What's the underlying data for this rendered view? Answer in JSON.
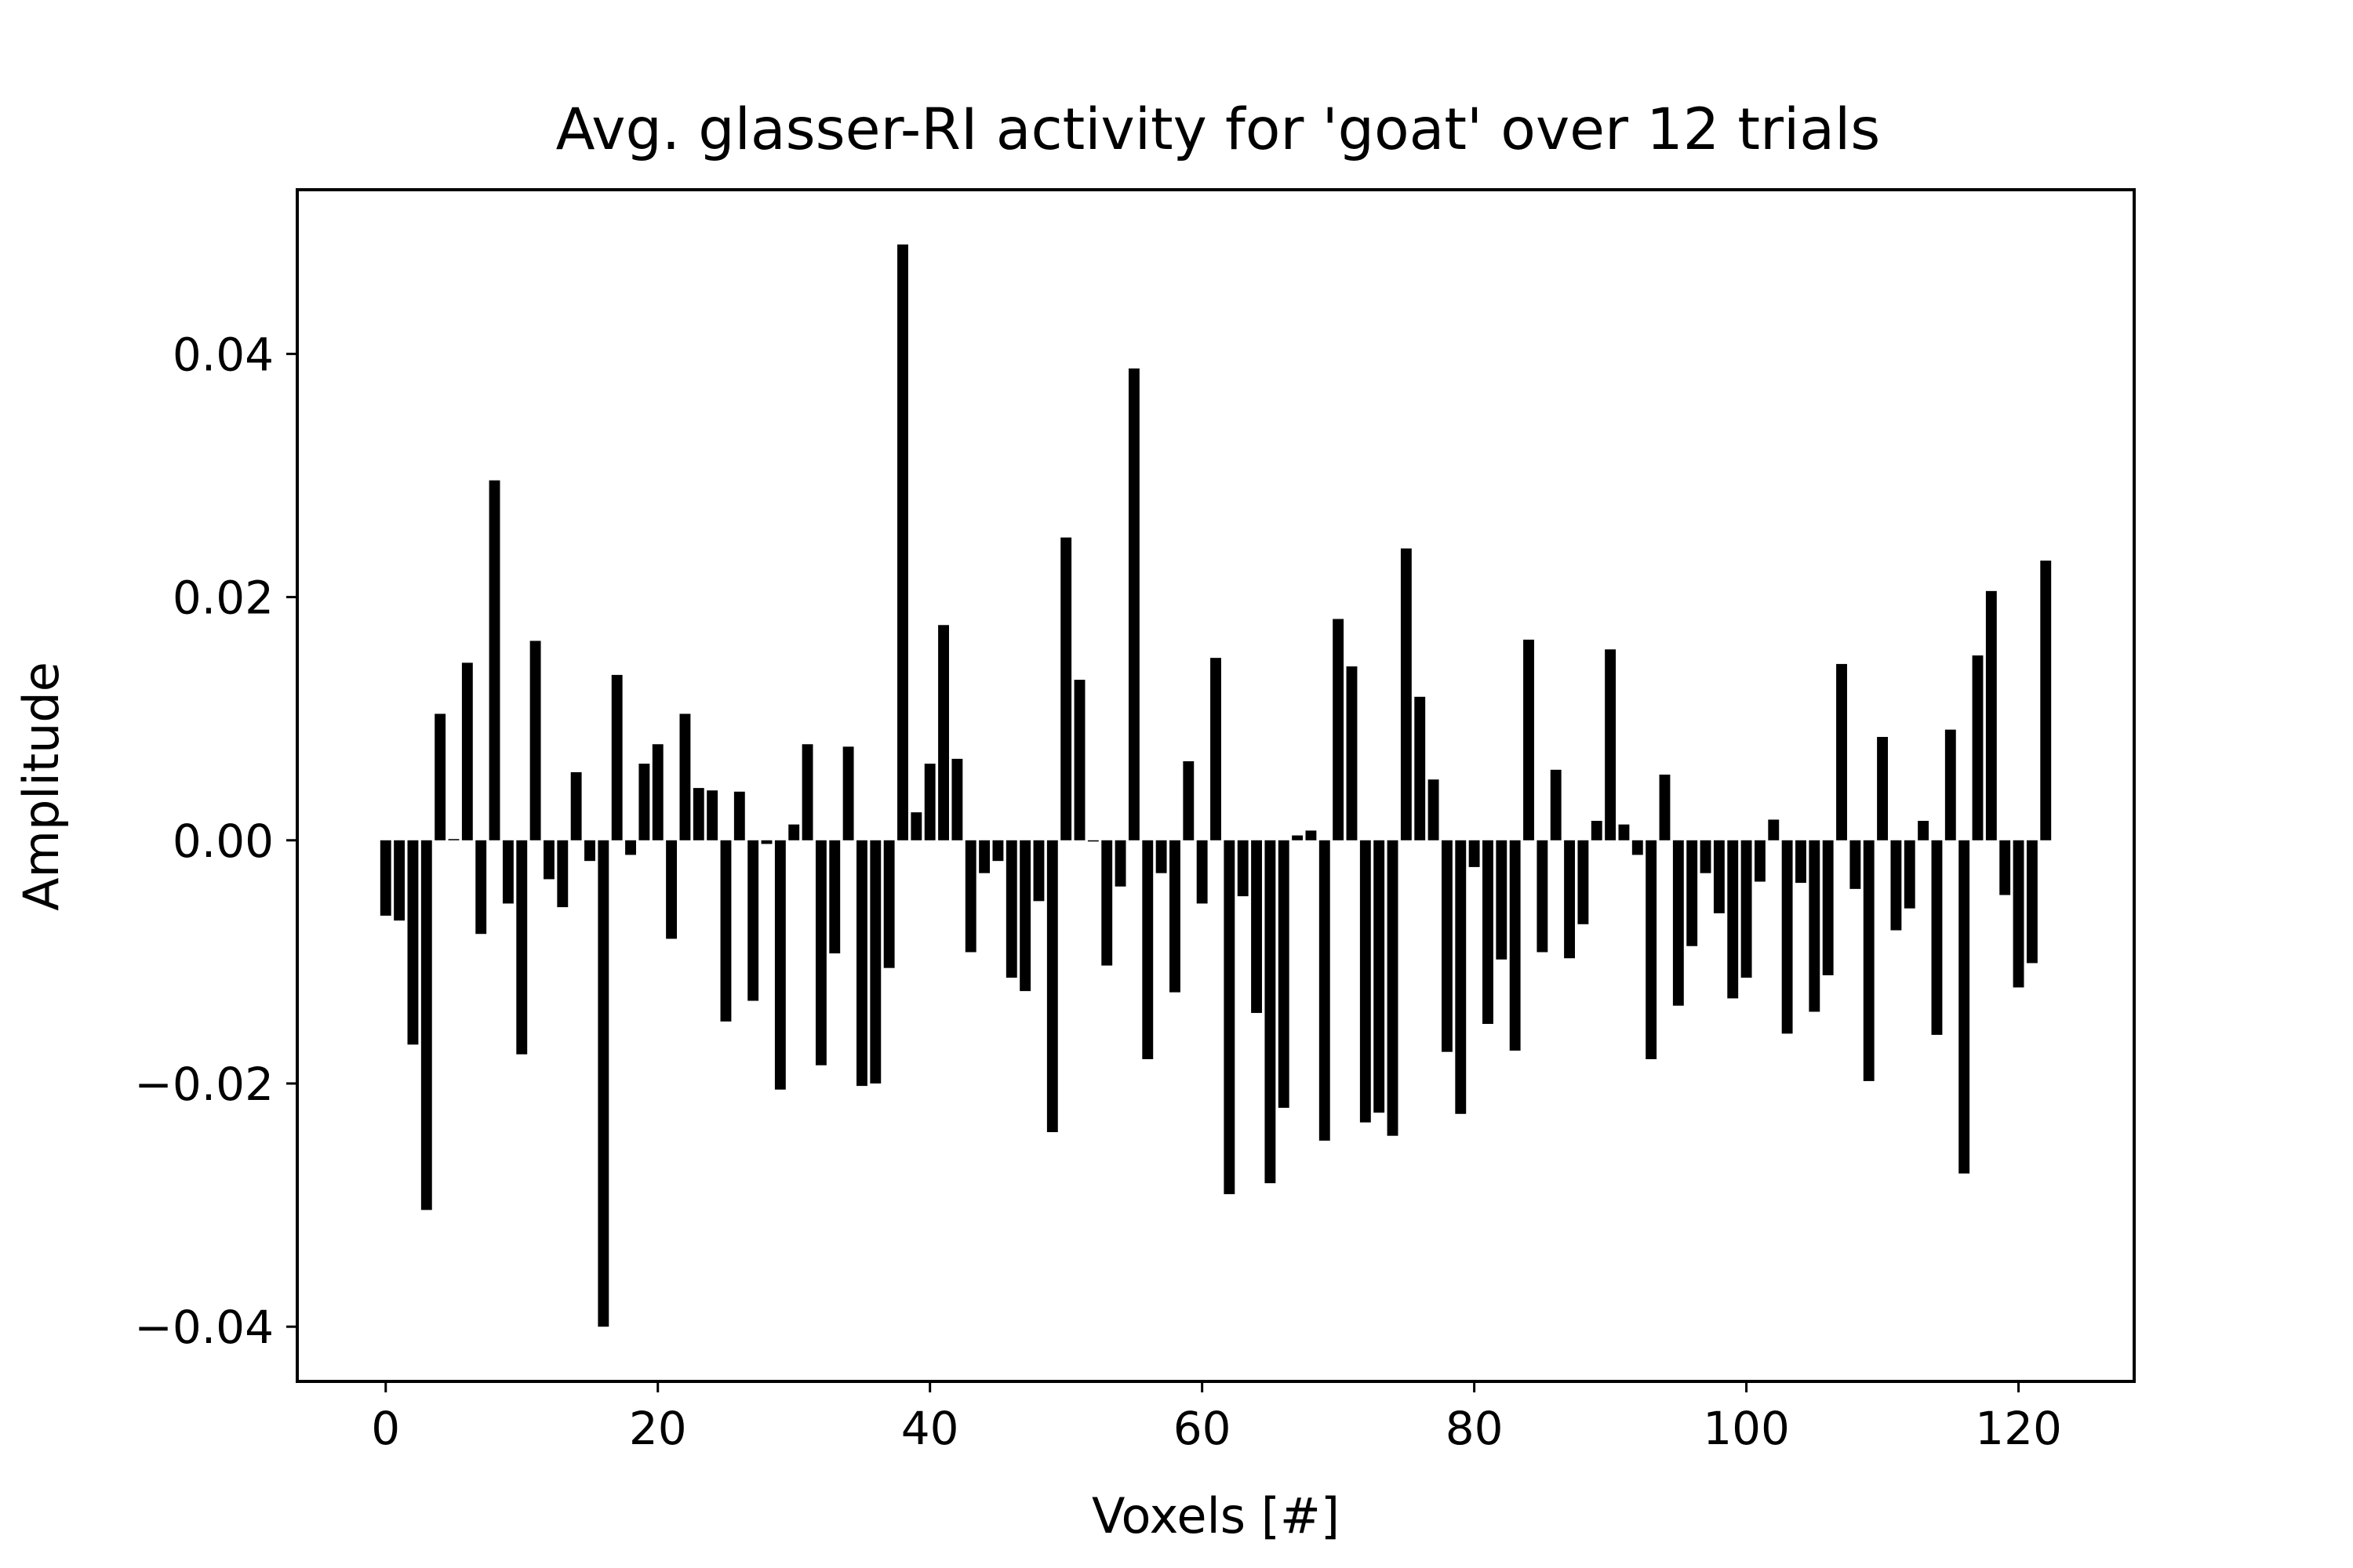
{
  "chart_data": {
    "type": "bar",
    "title": "Avg. glasser-RI activity for 'goat' over 12 trials",
    "xlabel": "Voxels [#]",
    "ylabel": "Amplitude",
    "xlim": [
      -6.5,
      128.5
    ],
    "ylim": [
      -0.0445,
      0.0535
    ],
    "xticks": [
      0,
      20,
      40,
      60,
      80,
      100,
      120
    ],
    "xtick_labels": [
      "0",
      "20",
      "40",
      "60",
      "80",
      "100",
      "120"
    ],
    "yticks": [
      -0.04,
      -0.02,
      0.0,
      0.02,
      0.04
    ],
    "ytick_labels": [
      "−0.04",
      "−0.02",
      "0.00",
      "0.02",
      "0.04"
    ],
    "bar_color": "#000000",
    "grid": false,
    "x": [
      0,
      1,
      2,
      3,
      4,
      5,
      6,
      7,
      8,
      9,
      10,
      11,
      12,
      13,
      14,
      15,
      16,
      17,
      18,
      19,
      20,
      21,
      22,
      23,
      24,
      25,
      26,
      27,
      28,
      29,
      30,
      31,
      32,
      33,
      34,
      35,
      36,
      37,
      38,
      39,
      40,
      41,
      42,
      43,
      44,
      45,
      46,
      47,
      48,
      49,
      50,
      51,
      52,
      53,
      54,
      55,
      56,
      57,
      58,
      59,
      60,
      61,
      62,
      63,
      64,
      65,
      66,
      67,
      68,
      69,
      70,
      71,
      72,
      73,
      74,
      75,
      76,
      77,
      78,
      79,
      80,
      81,
      82,
      83,
      84,
      85,
      86,
      87,
      88,
      89,
      90,
      91,
      92,
      93,
      94,
      95,
      96,
      97,
      98,
      99,
      100,
      101,
      102,
      103,
      104,
      105,
      106,
      107,
      108,
      109,
      110,
      111,
      112,
      113,
      114,
      115,
      116,
      117,
      118,
      119,
      120,
      121,
      122
    ],
    "values": [
      -0.0062,
      -0.0066,
      -0.0168,
      -0.0304,
      0.0104,
      0.0001,
      0.0146,
      -0.0077,
      0.0296,
      -0.0052,
      -0.0176,
      0.0164,
      -0.0032,
      -0.0055,
      0.0056,
      -0.0017,
      -0.04,
      0.0136,
      -0.0012,
      0.0063,
      0.0079,
      -0.0081,
      0.0104,
      0.0043,
      0.0041,
      -0.0149,
      0.004,
      -0.0132,
      -0.0003,
      -0.0205,
      0.0013,
      0.0079,
      -0.0185,
      -0.0093,
      0.0077,
      -0.0202,
      -0.02,
      -0.0105,
      0.049,
      0.0023,
      0.0063,
      0.0177,
      0.0067,
      -0.0092,
      -0.0027,
      -0.0017,
      -0.0113,
      -0.0124,
      -0.005,
      -0.024,
      0.0249,
      0.0132,
      -0.0001,
      -0.0103,
      -0.0038,
      0.0388,
      -0.018,
      -0.0027,
      -0.0125,
      0.0065,
      -0.0052,
      0.015,
      -0.0291,
      -0.0046,
      -0.0142,
      -0.0282,
      -0.022,
      0.0004,
      0.0008,
      -0.0247,
      0.0182,
      0.0143,
      -0.0232,
      -0.0224,
      -0.0243,
      0.024,
      0.0118,
      0.005,
      -0.0174,
      -0.0225,
      -0.0022,
      -0.0151,
      -0.0098,
      -0.0173,
      0.0165,
      -0.0092,
      0.0058,
      -0.0097,
      -0.0069,
      0.0016,
      0.0157,
      0.0013,
      -0.0012,
      -0.018,
      0.0054,
      -0.0136,
      -0.0087,
      -0.0027,
      -0.006,
      -0.013,
      -0.0113,
      -0.0034,
      0.0017,
      -0.0159,
      -0.0035,
      -0.0141,
      -0.0111,
      0.0145,
      -0.004,
      -0.0198,
      0.0085,
      -0.0074,
      -0.0056,
      0.0016,
      -0.016,
      0.0091,
      -0.0274,
      0.0152,
      0.0205,
      -0.0045,
      -0.0121,
      -0.0101,
      0.023
    ]
  }
}
